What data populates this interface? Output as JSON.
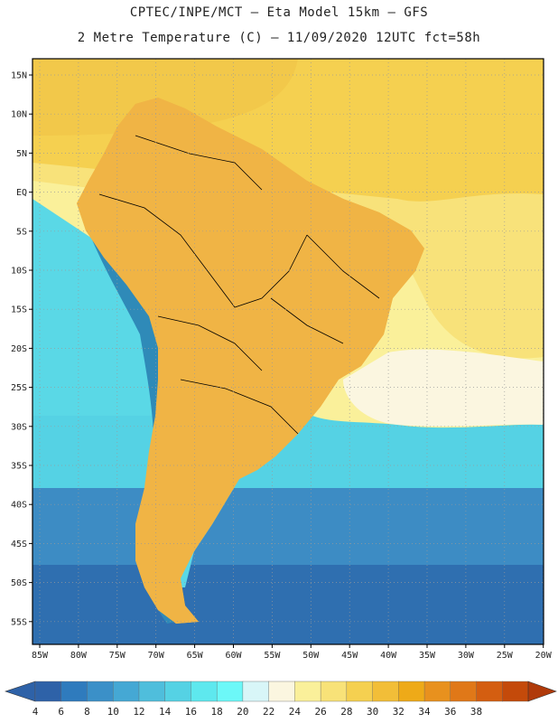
{
  "header": {
    "line1": "CPTEC/INPE/MCT –  Eta Model 15km – GFS",
    "line2": "2 Metre Temperature (C) – 11/09/2020 12UTC fct=58h"
  },
  "map": {
    "lat_labels": [
      "15N",
      "10N",
      "5N",
      "EQ",
      "5S",
      "10S",
      "15S",
      "20S",
      "25S",
      "30S",
      "35S",
      "40S",
      "45S",
      "50S",
      "55S"
    ],
    "lon_labels": [
      "85W",
      "80W",
      "75W",
      "70W",
      "65W",
      "60W",
      "55W",
      "50W",
      "45W",
      "40W",
      "35W",
      "30W",
      "25W",
      "20W"
    ],
    "colors": {
      "sea_north": "#f2c84a",
      "sea_tropic_south": "#f8e27a",
      "sea_cool": "#5ad8e6",
      "sea_cold": "#2f6fb0",
      "land_hot": "#e08a2a",
      "land_very_hot": "#cf6a1a",
      "land_warm": "#f0b445",
      "andes": "#2f8ab8",
      "border": "#000000",
      "grid": "#9a9a9a"
    }
  },
  "colorbar": {
    "ticks": [
      "4",
      "6",
      "8",
      "10",
      "12",
      "14",
      "16",
      "18",
      "20",
      "22",
      "24",
      "26",
      "28",
      "30",
      "32",
      "34",
      "36",
      "38"
    ],
    "colors": [
      "#2e62a8",
      "#2f7bbd",
      "#3b90c8",
      "#45a8d4",
      "#4fbedc",
      "#55d2e4",
      "#5ee8ee",
      "#6cf8f8",
      "#d8f6f8",
      "#fbf6e0",
      "#faf09a",
      "#f8e278",
      "#f5d050",
      "#f2be38",
      "#eeaa18",
      "#e8911e",
      "#e07818",
      "#d45e10",
      "#c44a0a"
    ],
    "left_arrow_color": "#2e62a8",
    "right_arrow_color": "#b03a0a"
  }
}
